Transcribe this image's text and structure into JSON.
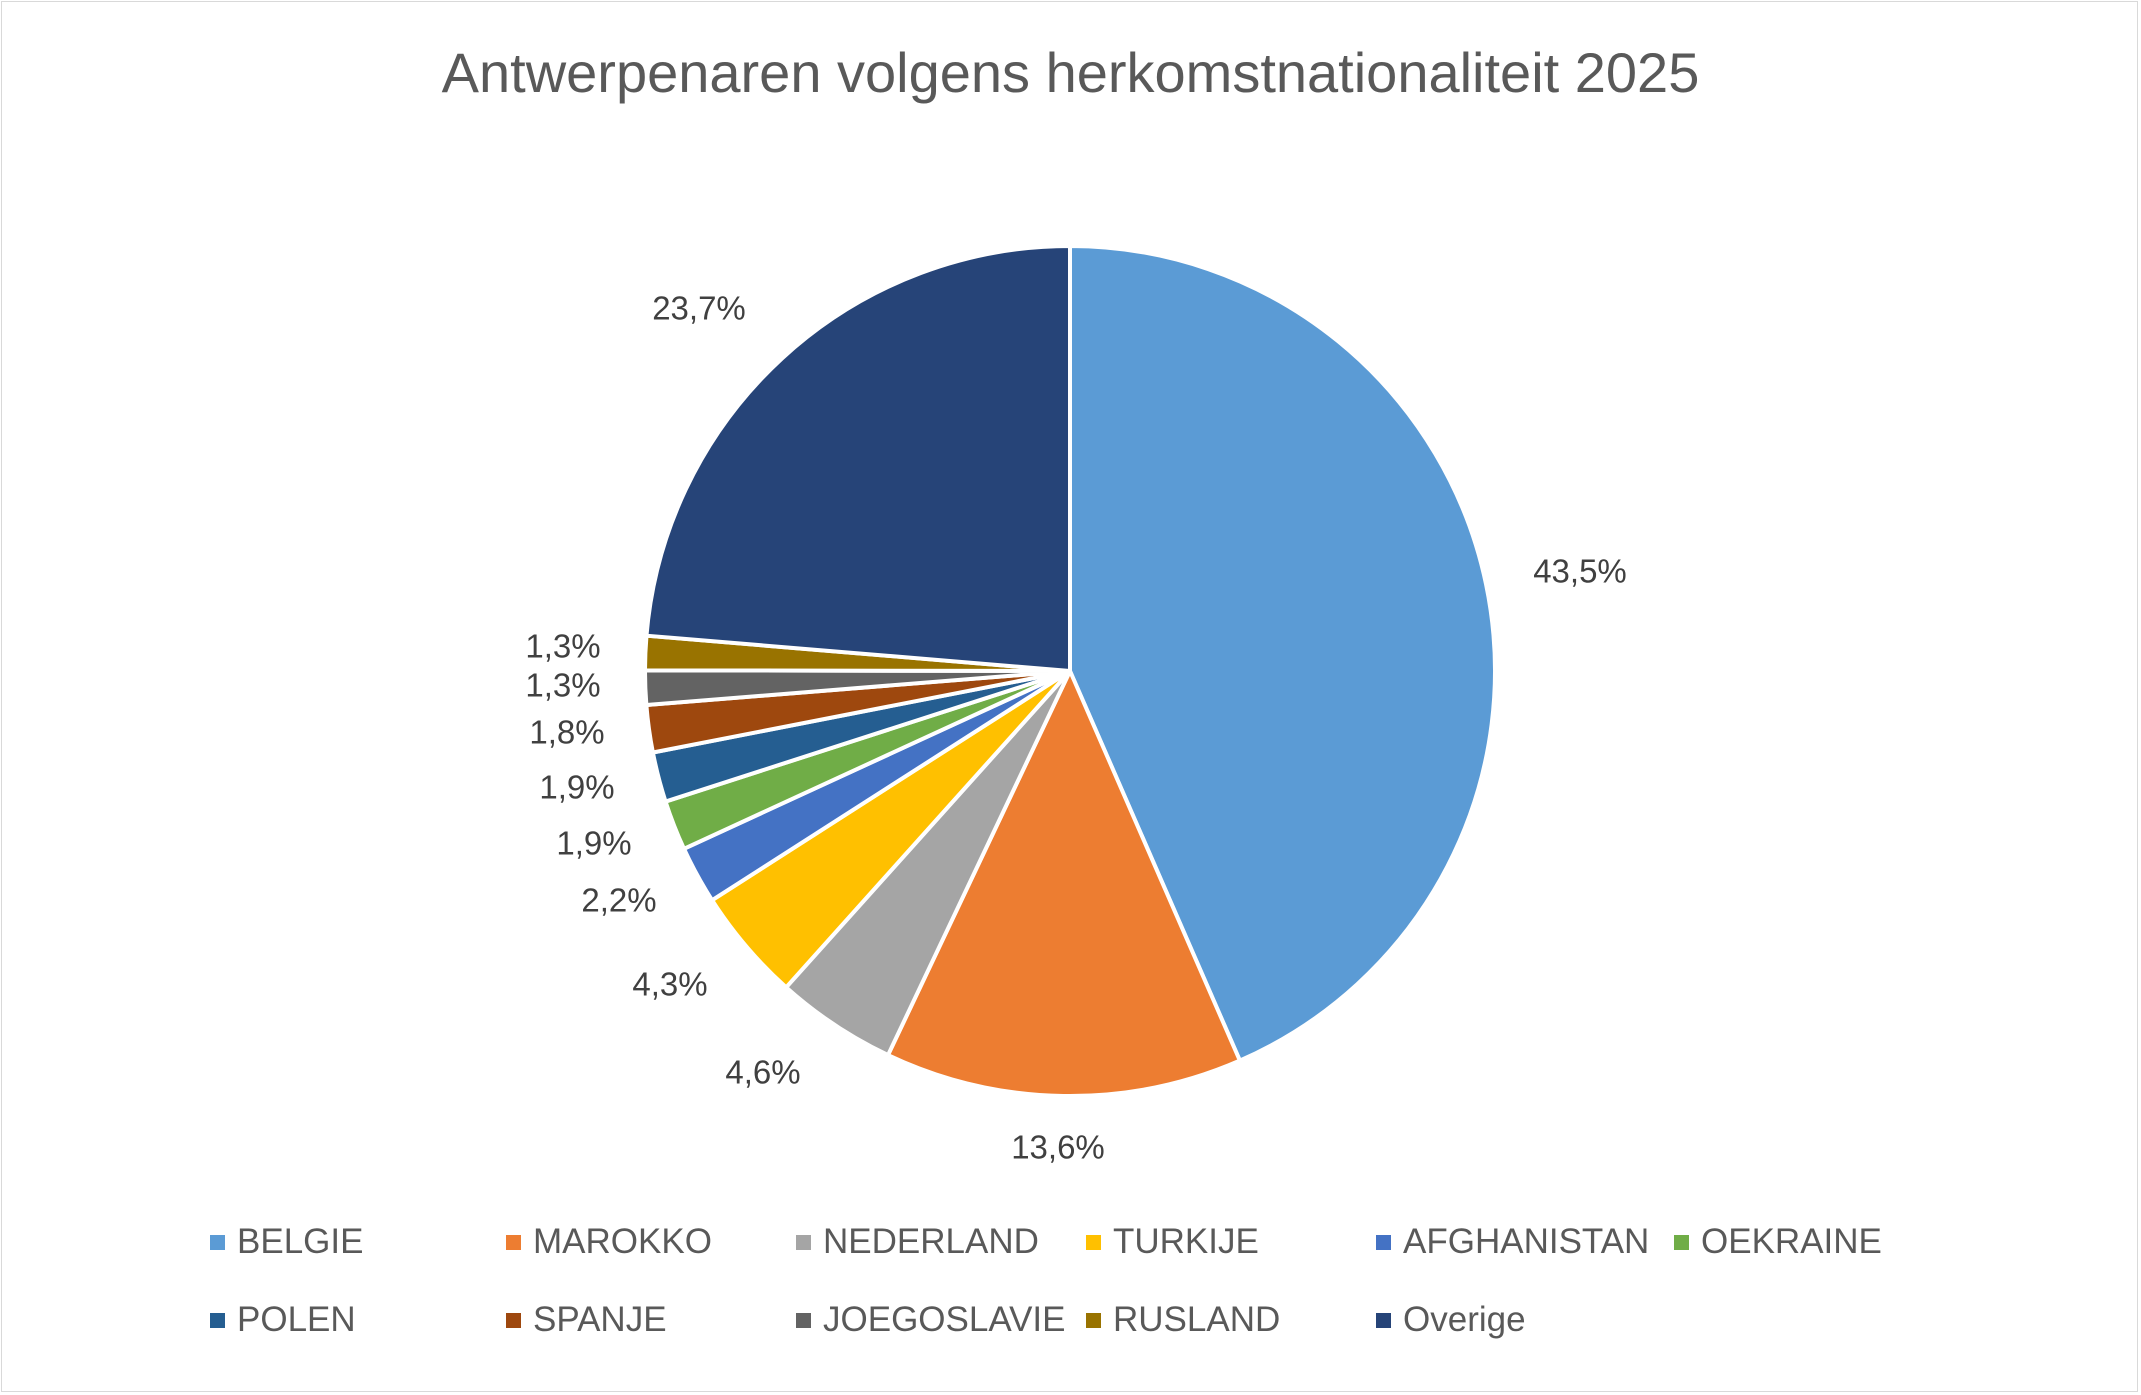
{
  "chart_data": {
    "type": "pie",
    "title": "Antwerpenaren volgens herkomstnationaliteit 2025",
    "legend_position": "bottom",
    "slices": [
      {
        "label": "BELGIE",
        "value": 43.5,
        "display": "43,5%",
        "color": "#5b9bd5"
      },
      {
        "label": "MAROKKO",
        "value": 13.6,
        "display": "13,6%",
        "color": "#ed7d31"
      },
      {
        "label": "NEDERLAND",
        "value": 4.6,
        "display": "4,6%",
        "color": "#a5a5a5"
      },
      {
        "label": "TURKIJE",
        "value": 4.3,
        "display": "4,3%",
        "color": "#ffc000"
      },
      {
        "label": "AFGHANISTAN",
        "value": 2.2,
        "display": "2,2%",
        "color": "#4472c4"
      },
      {
        "label": "OEKRAINE",
        "value": 1.9,
        "display": "1,9%",
        "color": "#70ad47"
      },
      {
        "label": "POLEN",
        "value": 1.9,
        "display": "1,9%",
        "color": "#255e91"
      },
      {
        "label": "SPANJE",
        "value": 1.8,
        "display": "1,8%",
        "color": "#9e480e"
      },
      {
        "label": "JOEGOSLAVIE",
        "value": 1.3,
        "display": "1,3%",
        "color": "#636363"
      },
      {
        "label": "RUSLAND",
        "value": 1.3,
        "display": "1,3%",
        "color": "#997300"
      },
      {
        "label": "Overige",
        "value": 23.7,
        "display": "23,7%",
        "color": "#264478"
      }
    ]
  }
}
